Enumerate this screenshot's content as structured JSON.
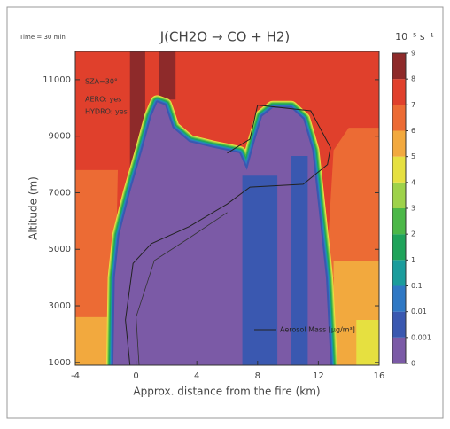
{
  "chart_data": {
    "type": "contour",
    "title": "J(CH2O → CO + H2)",
    "subtitle": "Time = 30 min",
    "x_label": "Approx. distance from the fire (km)",
    "y_label": "Altitude (m)",
    "annotations": [
      "SZA=30°",
      "AERO: yes",
      "HYDRO: yes"
    ],
    "contour_line_label": "Aerosol Mass [μg/m³]",
    "xlim": [
      -4,
      16
    ],
    "xticks": [
      -4,
      0,
      4,
      8,
      12,
      16
    ],
    "ylim": [
      900,
      12000
    ],
    "yticks": [
      1000,
      3000,
      5000,
      7000,
      9000,
      11000
    ],
    "colorbar": {
      "units": "10⁻⁵ s⁻¹",
      "levels": [
        0,
        0.001,
        0.01,
        0.1,
        1,
        2,
        3,
        4,
        5,
        6,
        7,
        8,
        9
      ],
      "colors": [
        "#7b5aa6",
        "#3a58b0",
        "#2f78c4",
        "#1b9c9c",
        "#1fa35a",
        "#4cb848",
        "#9ed24a",
        "#e6e040",
        "#f2a93e",
        "#ec6b34",
        "#e0402c",
        "#8e2a2a"
      ]
    }
  }
}
